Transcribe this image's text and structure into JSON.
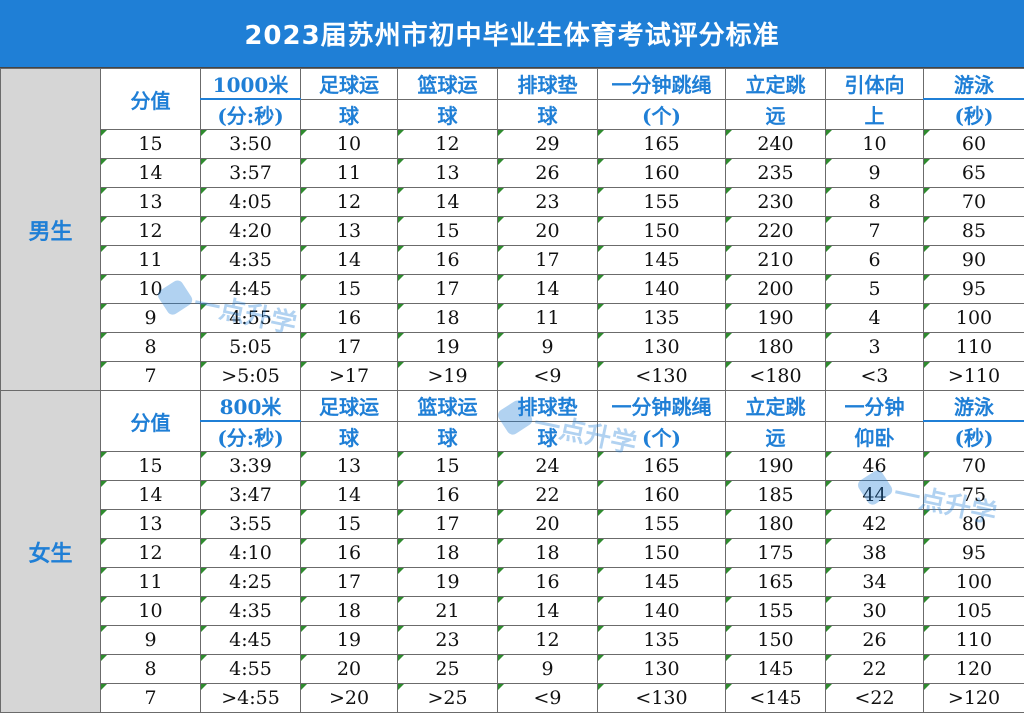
{
  "title": "2023届苏州市初中毕业生体育考试评分标准",
  "male": {
    "label": "男生",
    "headers": [
      [
        "分值"
      ],
      [
        "1000米",
        "(分:秒)"
      ],
      [
        "足球运",
        "球"
      ],
      [
        "篮球运",
        "球"
      ],
      [
        "排球垫",
        "球"
      ],
      [
        "一分钟跳绳",
        "(个)"
      ],
      [
        "立定跳",
        "远"
      ],
      [
        "引体向",
        "上"
      ],
      [
        "游泳",
        "(秒)"
      ]
    ],
    "rows": [
      [
        "15",
        "3:50",
        "10",
        "12",
        "29",
        "165",
        "240",
        "10",
        "60"
      ],
      [
        "14",
        "3:57",
        "11",
        "13",
        "26",
        "160",
        "235",
        "9",
        "65"
      ],
      [
        "13",
        "4:05",
        "12",
        "14",
        "23",
        "155",
        "230",
        "8",
        "70"
      ],
      [
        "12",
        "4:20",
        "13",
        "15",
        "20",
        "150",
        "220",
        "7",
        "85"
      ],
      [
        "11",
        "4:35",
        "14",
        "16",
        "17",
        "145",
        "210",
        "6",
        "90"
      ],
      [
        "10",
        "4:45",
        "15",
        "17",
        "14",
        "140",
        "200",
        "5",
        "95"
      ],
      [
        "9",
        "4:55",
        "16",
        "18",
        "11",
        "135",
        "190",
        "4",
        "100"
      ],
      [
        "8",
        "5:05",
        "17",
        "19",
        "9",
        "130",
        "180",
        "3",
        "110"
      ],
      [
        "7",
        ">5:05",
        ">17",
        ">19",
        "<9",
        "<130",
        "<180",
        "<3",
        ">110"
      ]
    ]
  },
  "female": {
    "label": "女生",
    "headers": [
      [
        "分值"
      ],
      [
        "800米",
        "(分:秒)"
      ],
      [
        "足球运",
        "球"
      ],
      [
        "篮球运",
        "球"
      ],
      [
        "排球垫",
        "球"
      ],
      [
        "一分钟跳绳",
        "(个)"
      ],
      [
        "立定跳",
        "远"
      ],
      [
        "一分钟",
        "仰卧"
      ],
      [
        "游泳",
        "(秒)"
      ]
    ],
    "rows": [
      [
        "15",
        "3:39",
        "13",
        "15",
        "24",
        "165",
        "190",
        "46",
        "70"
      ],
      [
        "14",
        "3:47",
        "14",
        "16",
        "22",
        "160",
        "185",
        "44",
        "75"
      ],
      [
        "13",
        "3:55",
        "15",
        "17",
        "20",
        "155",
        "180",
        "42",
        "80"
      ],
      [
        "12",
        "4:10",
        "16",
        "18",
        "18",
        "150",
        "175",
        "38",
        "95"
      ],
      [
        "11",
        "4:25",
        "17",
        "19",
        "16",
        "145",
        "165",
        "34",
        "100"
      ],
      [
        "10",
        "4:35",
        "18",
        "21",
        "14",
        "140",
        "155",
        "30",
        "105"
      ],
      [
        "9",
        "4:45",
        "19",
        "23",
        "12",
        "135",
        "150",
        "26",
        "110"
      ],
      [
        "8",
        "4:55",
        "20",
        "25",
        "9",
        "130",
        "145",
        "22",
        "120"
      ],
      [
        "7",
        ">4:55",
        ">20",
        ">25",
        "<9",
        "<130",
        "<145",
        "<22",
        ">120"
      ]
    ]
  },
  "watermark": "一点升学",
  "colors": {
    "title_bg": "#1f7fd6",
    "header_text": "#1f7fd6",
    "gender_bg": "#d6d6d6"
  }
}
